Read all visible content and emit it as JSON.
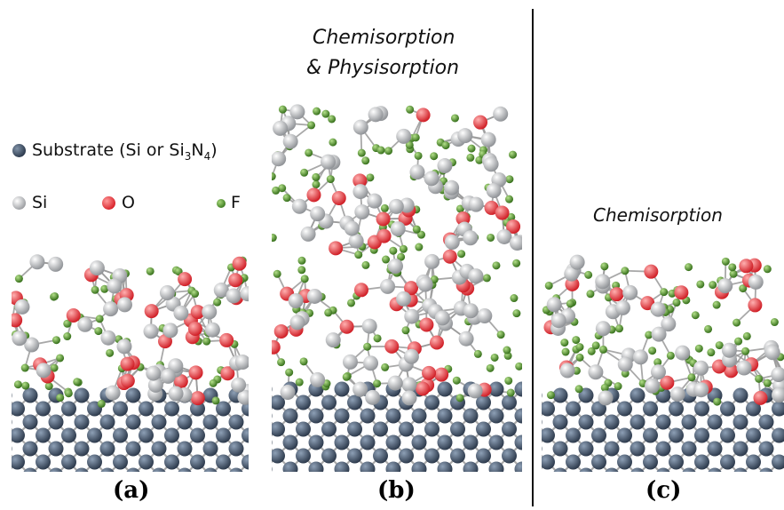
{
  "titles": {
    "b_line1": "Chemisorption",
    "b_line2": "& Physisorption",
    "c": "Chemisorption"
  },
  "legend": {
    "substrate_prefix": "Substrate (Si or Si",
    "substrate_sub1": "3",
    "substrate_mid": "N",
    "substrate_sub2": "4",
    "substrate_suffix": ")",
    "si": "Si",
    "o": "O",
    "f": "F"
  },
  "captions": {
    "a": "(a)",
    "b": "(b)",
    "c": "(c)"
  },
  "colors": {
    "substrate": "#3a4a5e",
    "si": "#bfc1c4",
    "o": "#e8383d",
    "f": "#4a8a2a",
    "bond": "#9a9a9a"
  }
}
